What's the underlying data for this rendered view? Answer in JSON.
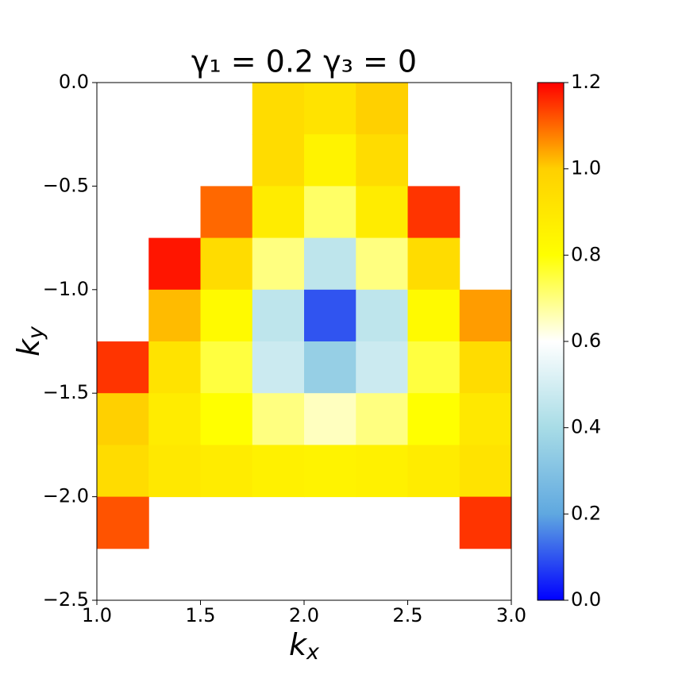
{
  "chart_data": {
    "type": "heatmap",
    "title": "γ₁ = 0.2    γ₃ = 0",
    "xlabel": {
      "text": "k",
      "subscript": "x"
    },
    "ylabel": {
      "text": "k",
      "subscript": "y"
    },
    "xbins": [
      1.0,
      1.25,
      1.5,
      1.75,
      2.0,
      2.25,
      2.5,
      2.75,
      3.0
    ],
    "ybins": [
      0,
      -0.25,
      -0.5,
      -0.75,
      -1.0,
      -1.25,
      -1.5,
      -1.75,
      -2.0,
      -2.25,
      -2.5
    ],
    "z": [
      [
        null,
        null,
        null,
        0.95,
        0.92,
        1.0,
        null,
        null
      ],
      [
        null,
        null,
        null,
        0.95,
        0.85,
        0.95,
        null,
        null
      ],
      [
        null,
        null,
        1.1,
        0.88,
        0.72,
        0.88,
        1.15,
        null
      ],
      [
        null,
        1.18,
        0.95,
        0.7,
        0.45,
        0.7,
        0.95,
        null
      ],
      [
        null,
        1.02,
        0.82,
        0.45,
        0.1,
        0.45,
        0.82,
        1.05
      ],
      [
        1.15,
        0.92,
        0.75,
        0.48,
        0.35,
        0.48,
        0.75,
        0.95
      ],
      [
        1.0,
        0.88,
        0.8,
        0.7,
        0.65,
        0.7,
        0.8,
        0.9
      ],
      [
        0.95,
        0.9,
        0.88,
        0.86,
        0.85,
        0.86,
        0.88,
        0.92
      ],
      [
        1.12,
        null,
        null,
        null,
        null,
        null,
        null,
        1.15
      ],
      [
        null,
        null,
        null,
        null,
        null,
        null,
        null,
        null
      ]
    ],
    "xlim": [
      1.0,
      3.0
    ],
    "ylim": [
      -2.5,
      0
    ],
    "xticks": [
      {
        "value": 1,
        "label": "1.0"
      },
      1.5,
      {
        "value": 2,
        "label": "2.0"
      },
      2.5,
      {
        "value": 3,
        "label": "3.0"
      }
    ],
    "yticks": [
      {
        "value": 0,
        "label": "0.0"
      },
      {
        "value": -0.5,
        "label": "−0.5"
      },
      {
        "value": -1,
        "label": "−1.0"
      },
      {
        "value": -1.5,
        "label": "−1.5"
      },
      {
        "value": -2,
        "label": "−2.0"
      },
      {
        "value": -2.5,
        "label": "−2.5"
      }
    ],
    "clim": [
      0,
      1.2
    ],
    "cticks": [
      {
        "value": 0,
        "label": "0.0"
      },
      0.2,
      0.4,
      0.6,
      0.8,
      {
        "value": 1,
        "label": "1.0"
      },
      1.2
    ],
    "colormap": [
      {
        "value": 0,
        "color": "#0000ff"
      },
      {
        "value": 0.2,
        "color": "#5fa8e0"
      },
      {
        "value": 0.4,
        "color": "#a8dce6"
      },
      {
        "value": 0.6,
        "color": "#ffffff"
      },
      {
        "value": 0.8,
        "color": "#ffff00"
      },
      {
        "value": 1.0,
        "color": "#ffd000"
      },
      {
        "value": 1.2,
        "color": "#ff0000"
      }
    ]
  }
}
